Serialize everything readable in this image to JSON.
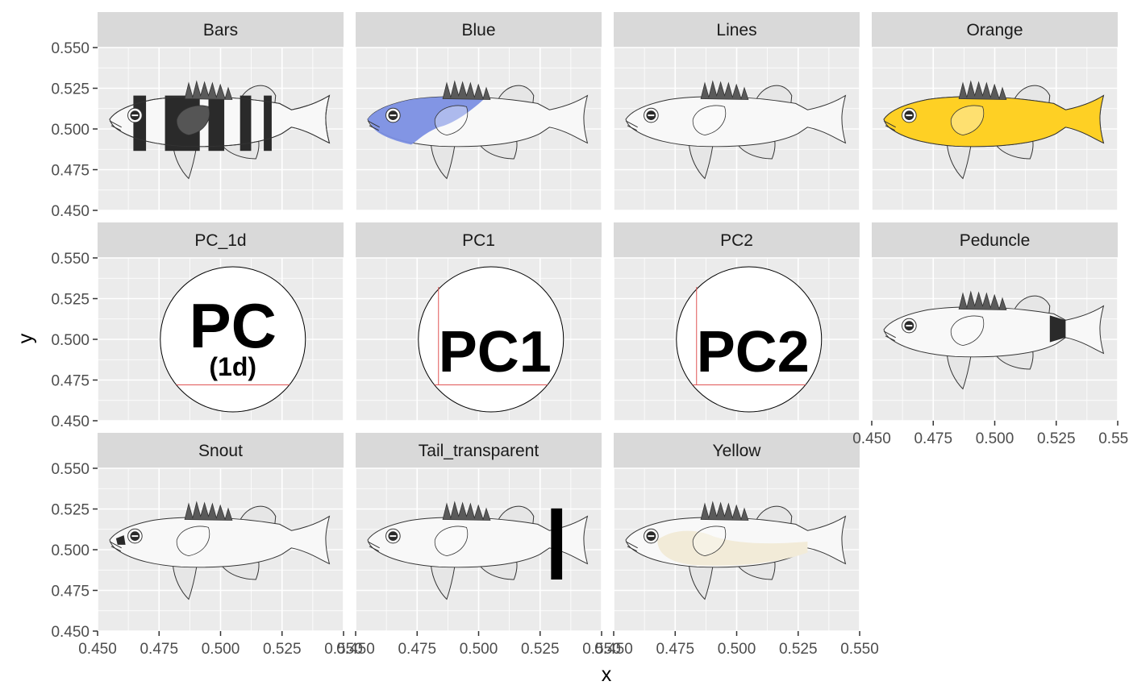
{
  "chart_data": {
    "type": "facet_image_grid",
    "xlabel": "x",
    "ylabel": "y",
    "xlim": [
      0.45,
      0.55
    ],
    "ylim": [
      0.45,
      0.55
    ],
    "x_ticks": [
      "0.450",
      "0.475",
      "0.500",
      "0.525",
      "0.550"
    ],
    "y_ticks": [
      "0.450",
      "0.475",
      "0.500",
      "0.525",
      "0.550"
    ],
    "grid": true,
    "panels": [
      {
        "label": "Bars",
        "variant": "bars",
        "fill": "#2a2a2a"
      },
      {
        "label": "Blue",
        "variant": "blue",
        "fill": "#7b8fe3"
      },
      {
        "label": "Lines",
        "variant": "lines",
        "fill": "#f8f8f8"
      },
      {
        "label": "Orange",
        "variant": "orange",
        "fill": "#fed024"
      },
      {
        "label": "PC_1d",
        "variant": "pc",
        "main": "PC",
        "sub": "(1d)"
      },
      {
        "label": "PC1",
        "variant": "pc",
        "main": "PC1",
        "sub": ""
      },
      {
        "label": "PC2",
        "variant": "pc",
        "main": "PC2",
        "sub": ""
      },
      {
        "label": "Peduncle",
        "variant": "peduncle",
        "fill": "#2a2a2a"
      },
      {
        "label": "Snout",
        "variant": "snout",
        "fill": "#2a2a2a"
      },
      {
        "label": "Tail_transparent",
        "variant": "tail",
        "fill": "#000000"
      },
      {
        "label": "Yellow",
        "variant": "yellow",
        "fill": "#f2ebd8"
      }
    ]
  },
  "colors": {
    "panel_bg": "#ebebeb",
    "strip_bg": "#d9d9d9",
    "grid": "#ffffff",
    "fish_body": "#f8f8f8",
    "fish_outline": "#333333",
    "fin": "#e6e6e6",
    "spines": "#5a5a5a",
    "pc_guide": "#e05555"
  }
}
